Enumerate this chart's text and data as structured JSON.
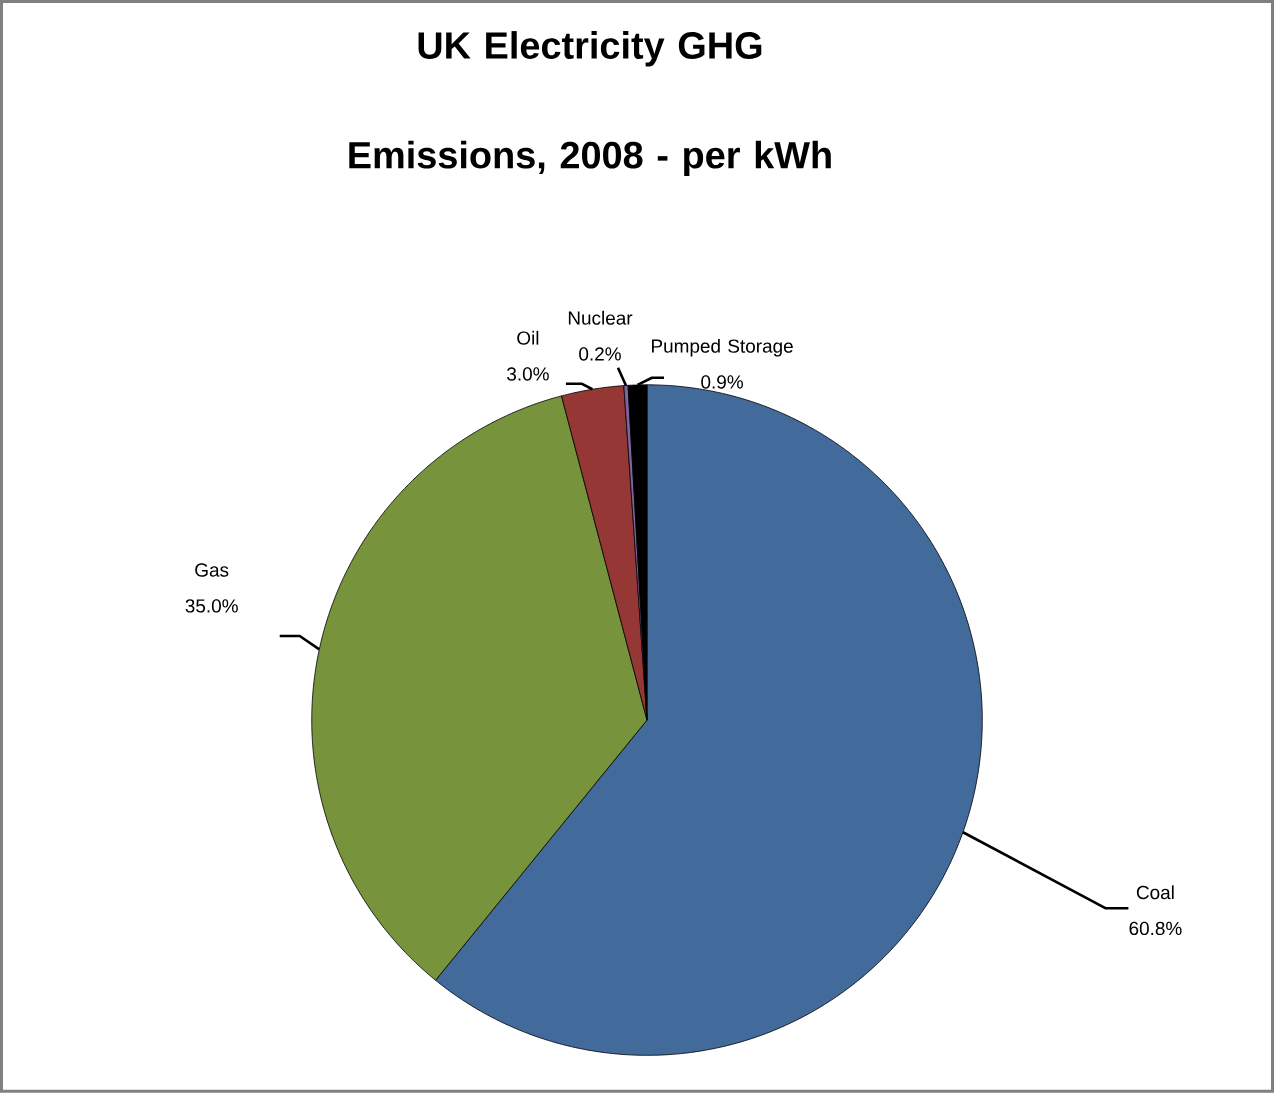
{
  "chart_data": {
    "type": "pie",
    "title": "UK Electricity GHG Emissions, 2008 - per kWh",
    "categories": [
      "Coal",
      "Gas",
      "Oil",
      "Nuclear",
      "Pumped Storage"
    ],
    "values": [
      60.8,
      35.0,
      3.0,
      0.2,
      0.9
    ],
    "value_labels": [
      "60.8%",
      "35.0%",
      "3.0%",
      "0.2%",
      "0.9%"
    ],
    "colors": [
      "#426a9a",
      "#77933c",
      "#953735",
      "#8064a2",
      "#000000"
    ]
  }
}
